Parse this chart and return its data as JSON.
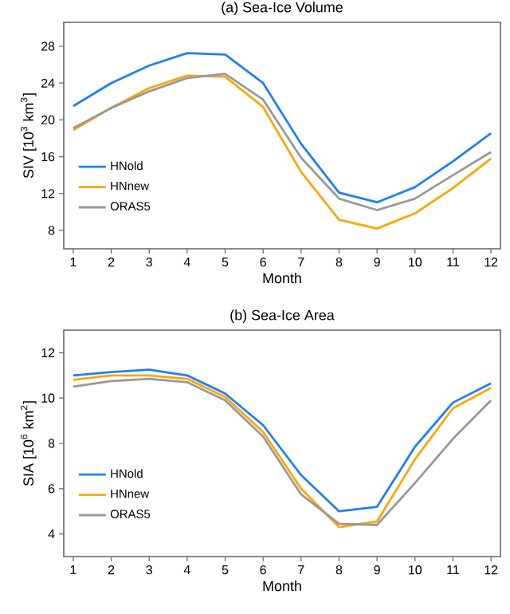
{
  "chart_data": [
    {
      "type": "line",
      "title": "(a)  Sea-Ice Volume",
      "xlabel": "Month",
      "ylabel": "SIV  [10$^{3}$ km$^{3}$]",
      "x": [
        1,
        2,
        3,
        4,
        5,
        6,
        7,
        8,
        9,
        10,
        11,
        12
      ],
      "xlim": [
        0.75,
        12.25
      ],
      "xticks": [
        1,
        2,
        3,
        4,
        5,
        6,
        7,
        8,
        9,
        10,
        11,
        12
      ],
      "ylim": [
        6,
        30.6
      ],
      "yticks": [
        8,
        12,
        16,
        20,
        24,
        28
      ],
      "legend": "bottom left",
      "marker": "none",
      "line_style": "solid",
      "series": [
        {
          "name": "HNold",
          "color": "#1a80ff",
          "values": [
            21.5,
            24.0,
            25.9,
            27.25,
            27.1,
            24.0,
            17.4,
            12.1,
            11.05,
            12.7,
            15.5,
            18.55
          ]
        },
        {
          "name": "HNnew",
          "color": "#ffa500",
          "values": [
            18.9,
            21.3,
            23.45,
            24.8,
            24.7,
            21.4,
            14.35,
            9.15,
            8.2,
            9.85,
            12.6,
            15.8
          ]
        },
        {
          "name": "ORAS5",
          "color": "#999999",
          "values": [
            19.1,
            21.3,
            23.1,
            24.55,
            25.0,
            22.2,
            15.9,
            11.45,
            10.2,
            11.45,
            14.0,
            16.5
          ]
        }
      ]
    },
    {
      "type": "line",
      "title": "(b)  Sea-Ice Area",
      "xlabel": "Month",
      "ylabel": "SIA  [10$^{6}$ km$^{2}$]",
      "x": [
        1,
        2,
        3,
        4,
        5,
        6,
        7,
        8,
        9,
        10,
        11,
        12
      ],
      "xlim": [
        0.75,
        12.25
      ],
      "xticks": [
        1,
        2,
        3,
        4,
        5,
        6,
        7,
        8,
        9,
        10,
        11,
        12
      ],
      "ylim": [
        3,
        13
      ],
      "yticks": [
        4,
        6,
        8,
        10,
        12
      ],
      "legend": "bottom left",
      "marker": "none",
      "line_style": "solid",
      "series": [
        {
          "name": "HNold",
          "color": "#1a80ff",
          "values": [
            11.0,
            11.15,
            11.25,
            11.0,
            10.2,
            8.8,
            6.6,
            5.0,
            5.2,
            7.85,
            9.8,
            10.65
          ]
        },
        {
          "name": "HNnew",
          "color": "#ffa500",
          "values": [
            10.8,
            11.0,
            11.0,
            10.85,
            10.05,
            8.5,
            6.0,
            4.3,
            4.55,
            7.3,
            9.55,
            10.45
          ]
        },
        {
          "name": "ORAS5",
          "color": "#999999",
          "values": [
            10.5,
            10.75,
            10.85,
            10.7,
            9.9,
            8.3,
            5.75,
            4.45,
            4.4,
            6.25,
            8.2,
            9.9
          ]
        }
      ]
    }
  ]
}
